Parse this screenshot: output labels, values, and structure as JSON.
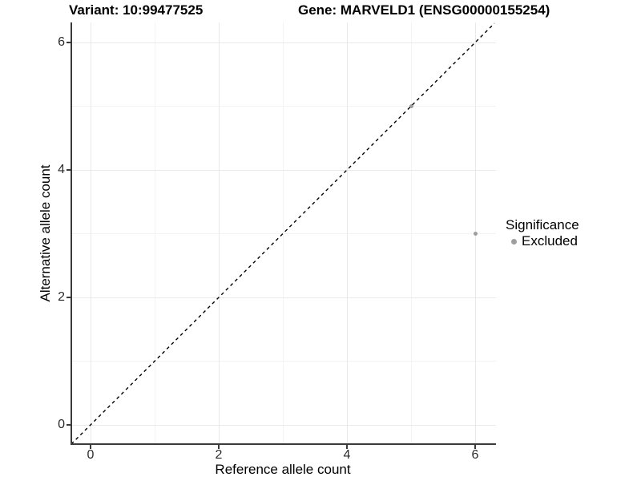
{
  "chart_data": {
    "type": "scatter",
    "title_left": "Variant: 10:99477525",
    "title_right": "Gene: MARVELD1 (ENSG00000155254)",
    "xlabel": "Reference allele count",
    "ylabel": "Alternative allele count",
    "xlim": [
      -0.3,
      6.3
    ],
    "ylim": [
      -0.3,
      6.3
    ],
    "x_ticks": [
      0,
      2,
      4,
      6
    ],
    "y_ticks": [
      0,
      2,
      4,
      6
    ],
    "minor_grid": [
      1,
      3,
      5
    ],
    "grid": "major and minor light-gray gridlines on white panel",
    "series": [
      {
        "name": "Excluded",
        "color": "#9E9E9E",
        "points": [
          [
            5,
            5
          ],
          [
            6,
            3
          ]
        ]
      }
    ],
    "identity_line": {
      "description": "dashed y = x reference line spanning panel corner to corner",
      "from": [
        -0.3,
        -0.3
      ],
      "to": [
        6.3,
        6.3
      ],
      "style": "dashed",
      "color": "#000000"
    },
    "legend": {
      "title": "Significance",
      "position": "right",
      "items": [
        {
          "label": "Excluded",
          "color": "#9E9E9E"
        }
      ]
    }
  },
  "colors": {
    "background": "#FFFFFF",
    "point_gray": "#9E9E9E",
    "grid_major": "#E9E9E9",
    "grid_minor": "#F3F3F3",
    "axis_line": "#3A3A3A",
    "tick_text": "#2B2B2B",
    "identity_line": "#000000"
  }
}
